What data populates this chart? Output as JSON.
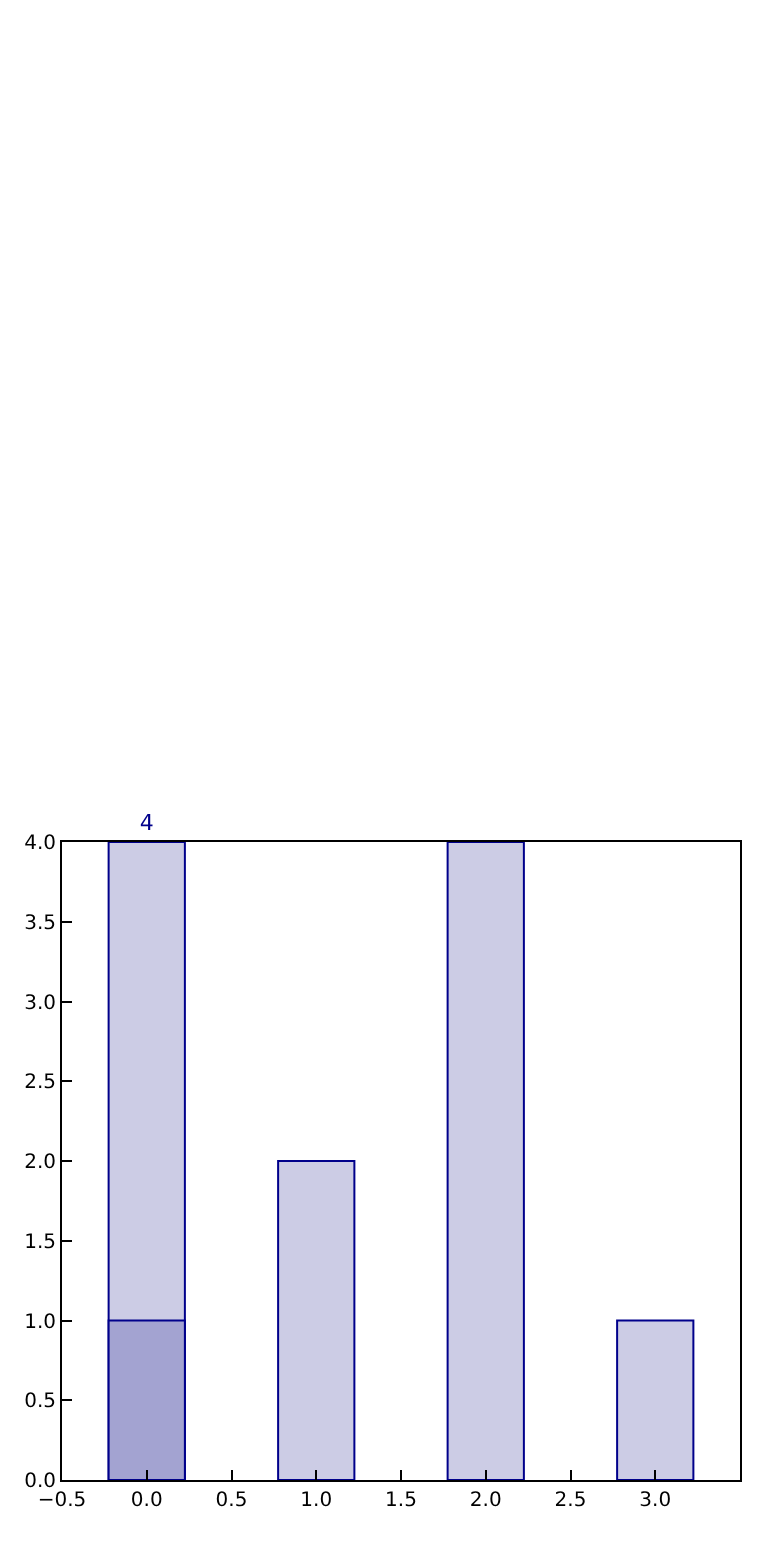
{
  "chart_data": {
    "type": "bar",
    "x": [
      0,
      1,
      2,
      3
    ],
    "series": [
      {
        "color": "#ccccE5",
        "values": [
          4,
          2,
          4,
          1
        ],
        "value_labels": [
          "4",
          null,
          null,
          null
        ]
      },
      {
        "color": "#a3a3d1",
        "values": [
          1,
          null,
          null,
          null
        ]
      }
    ],
    "xlim": [
      -0.5,
      3.5
    ],
    "xticks": [
      {
        "value": -0.5,
        "label": "−0.5"
      },
      {
        "value": 0,
        "label": "0.0"
      },
      0.5,
      {
        "value": 1,
        "label": "1.0"
      },
      1.5,
      {
        "value": 2,
        "label": "2.0"
      },
      2.5,
      {
        "value": 3,
        "label": "3.0"
      }
    ],
    "ylim": [
      0,
      4
    ],
    "yticks": [
      {
        "value": 0,
        "label": "0.0"
      },
      0.5,
      {
        "value": 1,
        "label": "1.0"
      },
      1.5,
      {
        "value": 2,
        "label": "2.0"
      },
      2.5,
      {
        "value": 3,
        "label": "3.0"
      },
      3.5,
      {
        "value": 4,
        "label": "4.0"
      }
    ],
    "data_labels": false
  }
}
